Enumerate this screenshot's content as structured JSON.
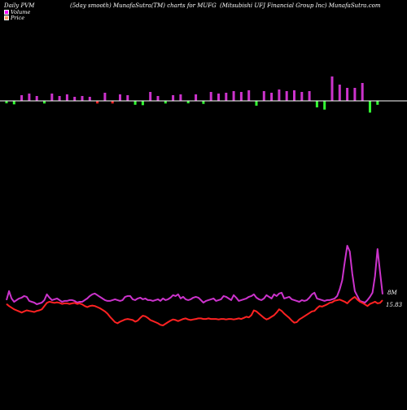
{
  "header": {
    "left": "Daily PVM",
    "middle": "(5day smooth) MunafaSutra(TM) charts for MUFG",
    "right": "(Mitsubishi  UFJ Financial Group Inc) MunafaSutra.com"
  },
  "legend": {
    "volume": "Volume",
    "price": "Price"
  },
  "colors": {
    "background": "#000000",
    "volume_line": "#cc33cc",
    "price_line": "#ff2222",
    "bar_up": "#cc33cc",
    "bar_down_green": "#33ff33",
    "bar_down_red": "#ff2222",
    "bar_cap_white": "#ffffff",
    "baseline": "#ffffff"
  },
  "chart_data": {
    "type": "line",
    "x": [
      1,
      2,
      3,
      4,
      5,
      6,
      7,
      8,
      9,
      10,
      11,
      12,
      13,
      14,
      15,
      16,
      17,
      18,
      19,
      20,
      21,
      22,
      23,
      24,
      25,
      26,
      27,
      28,
      29,
      30,
      31,
      32,
      33,
      34,
      35,
      36,
      37,
      38,
      39,
      40,
      41,
      42,
      43,
      44,
      45,
      46,
      47,
      48,
      49,
      50,
      51,
      52,
      53,
      54,
      55,
      56,
      57,
      58,
      59,
      60,
      61,
      62,
      63,
      64,
      65,
      66,
      67,
      68,
      69,
      70,
      71,
      72,
      73,
      74,
      75,
      76,
      77,
      78,
      79,
      80,
      81,
      82,
      83,
      84,
      85,
      86,
      87,
      88,
      89,
      90,
      91,
      92,
      93,
      94,
      95,
      96,
      97,
      98,
      99,
      100,
      101,
      102,
      103,
      104,
      105,
      106,
      107,
      108,
      109,
      110,
      111,
      112,
      113,
      114,
      115,
      116,
      117,
      118,
      119,
      120,
      121,
      122,
      123,
      124,
      125,
      126,
      127,
      128,
      129,
      130,
      131,
      132,
      133,
      134,
      135,
      136,
      137,
      138,
      139,
      140,
      141,
      142,
      143,
      144,
      145,
      146,
      147,
      148,
      149,
      150
    ],
    "series": [
      {
        "name": "Volume",
        "values": [
          1.6,
          2.7,
          1.8,
          1.4,
          1.6,
          1.8,
          1.9,
          2.1,
          2.0,
          1.5,
          1.4,
          1.3,
          1.1,
          1.2,
          1.3,
          1.6,
          2.3,
          1.9,
          1.6,
          1.7,
          1.8,
          1.6,
          1.4,
          1.5,
          1.5,
          1.6,
          1.6,
          1.5,
          1.3,
          1.4,
          1.4,
          1.6,
          1.8,
          2.1,
          2.3,
          2.4,
          2.2,
          2.0,
          1.8,
          1.6,
          1.5,
          1.5,
          1.6,
          1.7,
          1.6,
          1.5,
          1.6,
          2.0,
          2.1,
          2.1,
          1.7,
          1.6,
          1.8,
          1.9,
          1.7,
          1.8,
          1.6,
          1.6,
          1.5,
          1.6,
          1.7,
          1.5,
          1.8,
          1.6,
          1.7,
          1.9,
          2.2,
          2.1,
          2.3,
          1.8,
          2.0,
          1.7,
          1.6,
          1.7,
          1.9,
          2.0,
          1.9,
          1.6,
          1.3,
          1.5,
          1.6,
          1.7,
          1.8,
          1.5,
          1.6,
          1.7,
          2.1,
          2.0,
          1.8,
          1.6,
          2.2,
          1.9,
          1.5,
          1.6,
          1.7,
          1.8,
          2.0,
          2.1,
          2.3,
          1.9,
          1.7,
          1.6,
          1.8,
          2.2,
          2.0,
          1.8,
          2.3,
          2.1,
          2.4,
          2.5,
          1.8,
          1.9,
          2.0,
          1.7,
          1.6,
          1.5,
          1.4,
          1.6,
          1.5,
          1.6,
          1.9,
          2.3,
          2.5,
          1.8,
          1.7,
          1.6,
          1.5,
          1.6,
          1.6,
          1.7,
          1.8,
          2.1,
          2.9,
          4.0,
          6.2,
          8.2,
          7.5,
          4.8,
          2.7,
          2.1,
          1.5,
          1.4,
          1.3,
          1.6,
          2.0,
          2.5,
          4.5,
          7.8,
          5.0,
          2.3
        ]
      },
      {
        "name": "Price",
        "values": [
          15.76,
          15.72,
          15.69,
          15.66,
          15.64,
          15.62,
          15.6,
          15.62,
          15.64,
          15.63,
          15.62,
          15.61,
          15.63,
          15.64,
          15.66,
          15.72,
          15.78,
          15.8,
          15.79,
          15.78,
          15.79,
          15.78,
          15.76,
          15.77,
          15.77,
          15.76,
          15.77,
          15.78,
          15.76,
          15.77,
          15.75,
          15.72,
          15.7,
          15.72,
          15.73,
          15.72,
          15.7,
          15.68,
          15.65,
          15.62,
          15.58,
          15.52,
          15.47,
          15.42,
          15.4,
          15.43,
          15.45,
          15.47,
          15.48,
          15.47,
          15.46,
          15.43,
          15.45,
          15.5,
          15.54,
          15.53,
          15.5,
          15.46,
          15.44,
          15.42,
          15.4,
          15.37,
          15.36,
          15.39,
          15.42,
          15.45,
          15.47,
          15.46,
          15.44,
          15.46,
          15.48,
          15.49,
          15.47,
          15.46,
          15.47,
          15.48,
          15.49,
          15.49,
          15.48,
          15.48,
          15.49,
          15.48,
          15.48,
          15.48,
          15.47,
          15.48,
          15.48,
          15.47,
          15.48,
          15.48,
          15.47,
          15.48,
          15.49,
          15.48,
          15.5,
          15.52,
          15.51,
          15.55,
          15.64,
          15.62,
          15.58,
          15.54,
          15.5,
          15.47,
          15.49,
          15.52,
          15.55,
          15.6,
          15.66,
          15.63,
          15.58,
          15.54,
          15.5,
          15.45,
          15.41,
          15.42,
          15.47,
          15.5,
          15.53,
          15.56,
          15.59,
          15.62,
          15.63,
          15.68,
          15.72,
          15.71,
          15.73,
          15.75,
          15.78,
          15.79,
          15.82,
          15.83,
          15.84,
          15.82,
          15.8,
          15.77,
          15.82,
          15.86,
          15.89,
          15.84,
          15.8,
          15.78,
          15.75,
          15.72,
          15.76,
          15.78,
          15.8,
          15.77,
          15.78,
          15.83
        ]
      }
    ],
    "volume_bars": {
      "values": [
        4,
        5,
        6,
        8,
        9,
        8,
        7,
        9,
        10,
        9,
        8,
        7,
        6,
        5,
        4,
        6,
        7,
        8,
        9,
        8,
        7,
        6,
        7,
        7,
        8,
        7,
        6,
        5,
        7,
        6,
        6,
        5,
        4,
        5,
        6,
        5,
        6,
        7,
        9,
        10,
        9,
        7,
        6,
        5,
        6,
        8,
        7,
        7,
        7,
        8,
        8,
        9,
        10,
        9,
        10,
        12,
        14,
        11,
        9,
        8,
        6,
        5,
        5,
        6,
        7,
        8,
        7,
        6,
        7,
        8,
        7,
        6,
        5,
        6,
        7,
        8,
        9,
        8,
        7,
        8,
        9,
        11,
        10,
        9,
        9,
        10,
        10,
        10,
        11,
        10,
        12,
        11,
        10,
        11,
        12,
        11,
        13,
        14,
        13,
        11,
        12,
        13,
        12,
        11,
        9,
        10,
        11,
        12,
        14,
        16,
        14,
        12,
        11,
        12,
        13,
        14,
        12,
        11,
        10,
        11,
        12,
        13,
        14,
        15,
        16,
        17,
        20,
        24,
        28,
        30,
        26,
        22,
        20,
        18,
        17,
        16,
        15,
        14,
        16,
        18,
        20,
        22,
        25,
        28,
        27,
        20,
        12,
        9,
        8,
        7
      ],
      "directions": [
        "d",
        "u",
        "u",
        "d",
        "u",
        "u",
        "u",
        "u",
        "d",
        "u",
        "u",
        "d",
        "u",
        "u",
        "u",
        "d",
        "u",
        "u",
        "u",
        "u",
        "d",
        "u",
        "u",
        "d",
        "u",
        "d",
        "u",
        "u",
        "u",
        "d",
        "u",
        "d",
        "u",
        "u",
        "d",
        "u",
        "d",
        "u",
        "u",
        "u",
        "u",
        "d",
        "d",
        "u",
        "u",
        "u",
        "d",
        "d",
        "u",
        "u",
        "u",
        "d",
        "u",
        "u",
        "d",
        "u",
        "u",
        "u",
        "d",
        "u",
        "u",
        "u",
        "u",
        "d",
        "u",
        "u",
        "u",
        "d",
        "d",
        "u",
        "u",
        "u",
        "d",
        "u",
        "u",
        "u",
        "u",
        "u",
        "d",
        "u",
        "u",
        "u",
        "u",
        "u",
        "u",
        "u",
        "d",
        "u",
        "u",
        "d",
        "u",
        "u",
        "u",
        "u",
        "u",
        "u",
        "u",
        "u",
        "u",
        "d",
        "u",
        "u",
        "u",
        "u",
        "u",
        "u",
        "u",
        "u",
        "u",
        "u",
        "d",
        "u",
        "u",
        "d",
        "u",
        "u",
        "d",
        "u",
        "d",
        "u",
        "u",
        "u",
        "u",
        "d",
        "d",
        "d",
        "d",
        "u",
        "u",
        "u",
        "u",
        "u",
        "u",
        "u",
        "u",
        "u",
        "u",
        "d",
        "u",
        "d",
        "u",
        "u",
        "d",
        "u",
        "d",
        "u",
        "d",
        "d",
        "u",
        "u"
      ],
      "down_colors": [
        "g",
        "r",
        "g",
        "g",
        "r",
        "g",
        "g",
        "g",
        "g",
        "g",
        "g",
        "r",
        "g",
        "r",
        "r",
        "g",
        "g",
        "g",
        "g",
        "g",
        "r",
        "g",
        "g",
        "g",
        "g",
        "g",
        "r",
        "g",
        "r",
        "g",
        "g",
        "r",
        "g",
        "g",
        "g",
        "g",
        "r",
        "g",
        "g",
        "g",
        "g",
        "g",
        "r",
        "r",
        "g",
        "g",
        "g",
        "r",
        "g",
        "r",
        "r",
        "g",
        "g",
        "g",
        "g",
        "r",
        "r",
        "r",
        "g",
        "r",
        "g",
        "g",
        "g",
        "g",
        "r",
        "g",
        "g",
        "g",
        "g",
        "g",
        "g",
        "g",
        "g",
        "g",
        "g",
        "g",
        "g",
        "g",
        "g",
        "r",
        "g",
        "g",
        "g",
        "g",
        "g",
        "g",
        "g",
        "g",
        "g",
        "g",
        "g",
        "g",
        "g",
        "g",
        "g",
        "g",
        "g",
        "g",
        "g",
        "g",
        "g",
        "g",
        "g",
        "g",
        "g",
        "g",
        "g",
        "g",
        "g",
        "g",
        "g",
        "g",
        "g",
        "g",
        "g",
        "g",
        "g",
        "g",
        "g",
        "g",
        "g",
        "g",
        "g",
        "g",
        "g",
        "g",
        "g",
        "g",
        "g",
        "g",
        "g",
        "g",
        "g",
        "g",
        "g",
        "g",
        "g",
        "g",
        "g",
        "g",
        "g",
        "g",
        "g",
        "r",
        "g",
        "r",
        "g",
        "g",
        "g",
        "g"
      ]
    },
    "volume_label": "8M",
    "price_label": "15.83",
    "grid": false,
    "legend_position": "top-left"
  }
}
